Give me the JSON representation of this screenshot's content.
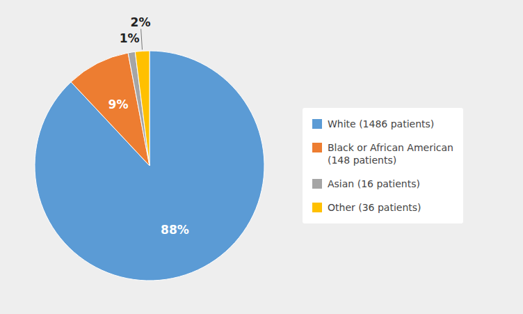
{
  "chart_data": {
    "type": "pie",
    "categories": [
      "White (1486 patients)",
      "Black or African American\n(148 patients)",
      "Asian (16 patients)",
      "Other (36 patients)"
    ],
    "values": [
      88,
      9,
      1,
      2
    ],
    "value_labels": [
      "88%",
      "9%",
      "1%",
      "2%"
    ],
    "colors": [
      "#5B9BD5",
      "#ED7D31",
      "#A5A5A5",
      "#FFC000"
    ],
    "data_labels": true,
    "legend": "right"
  }
}
